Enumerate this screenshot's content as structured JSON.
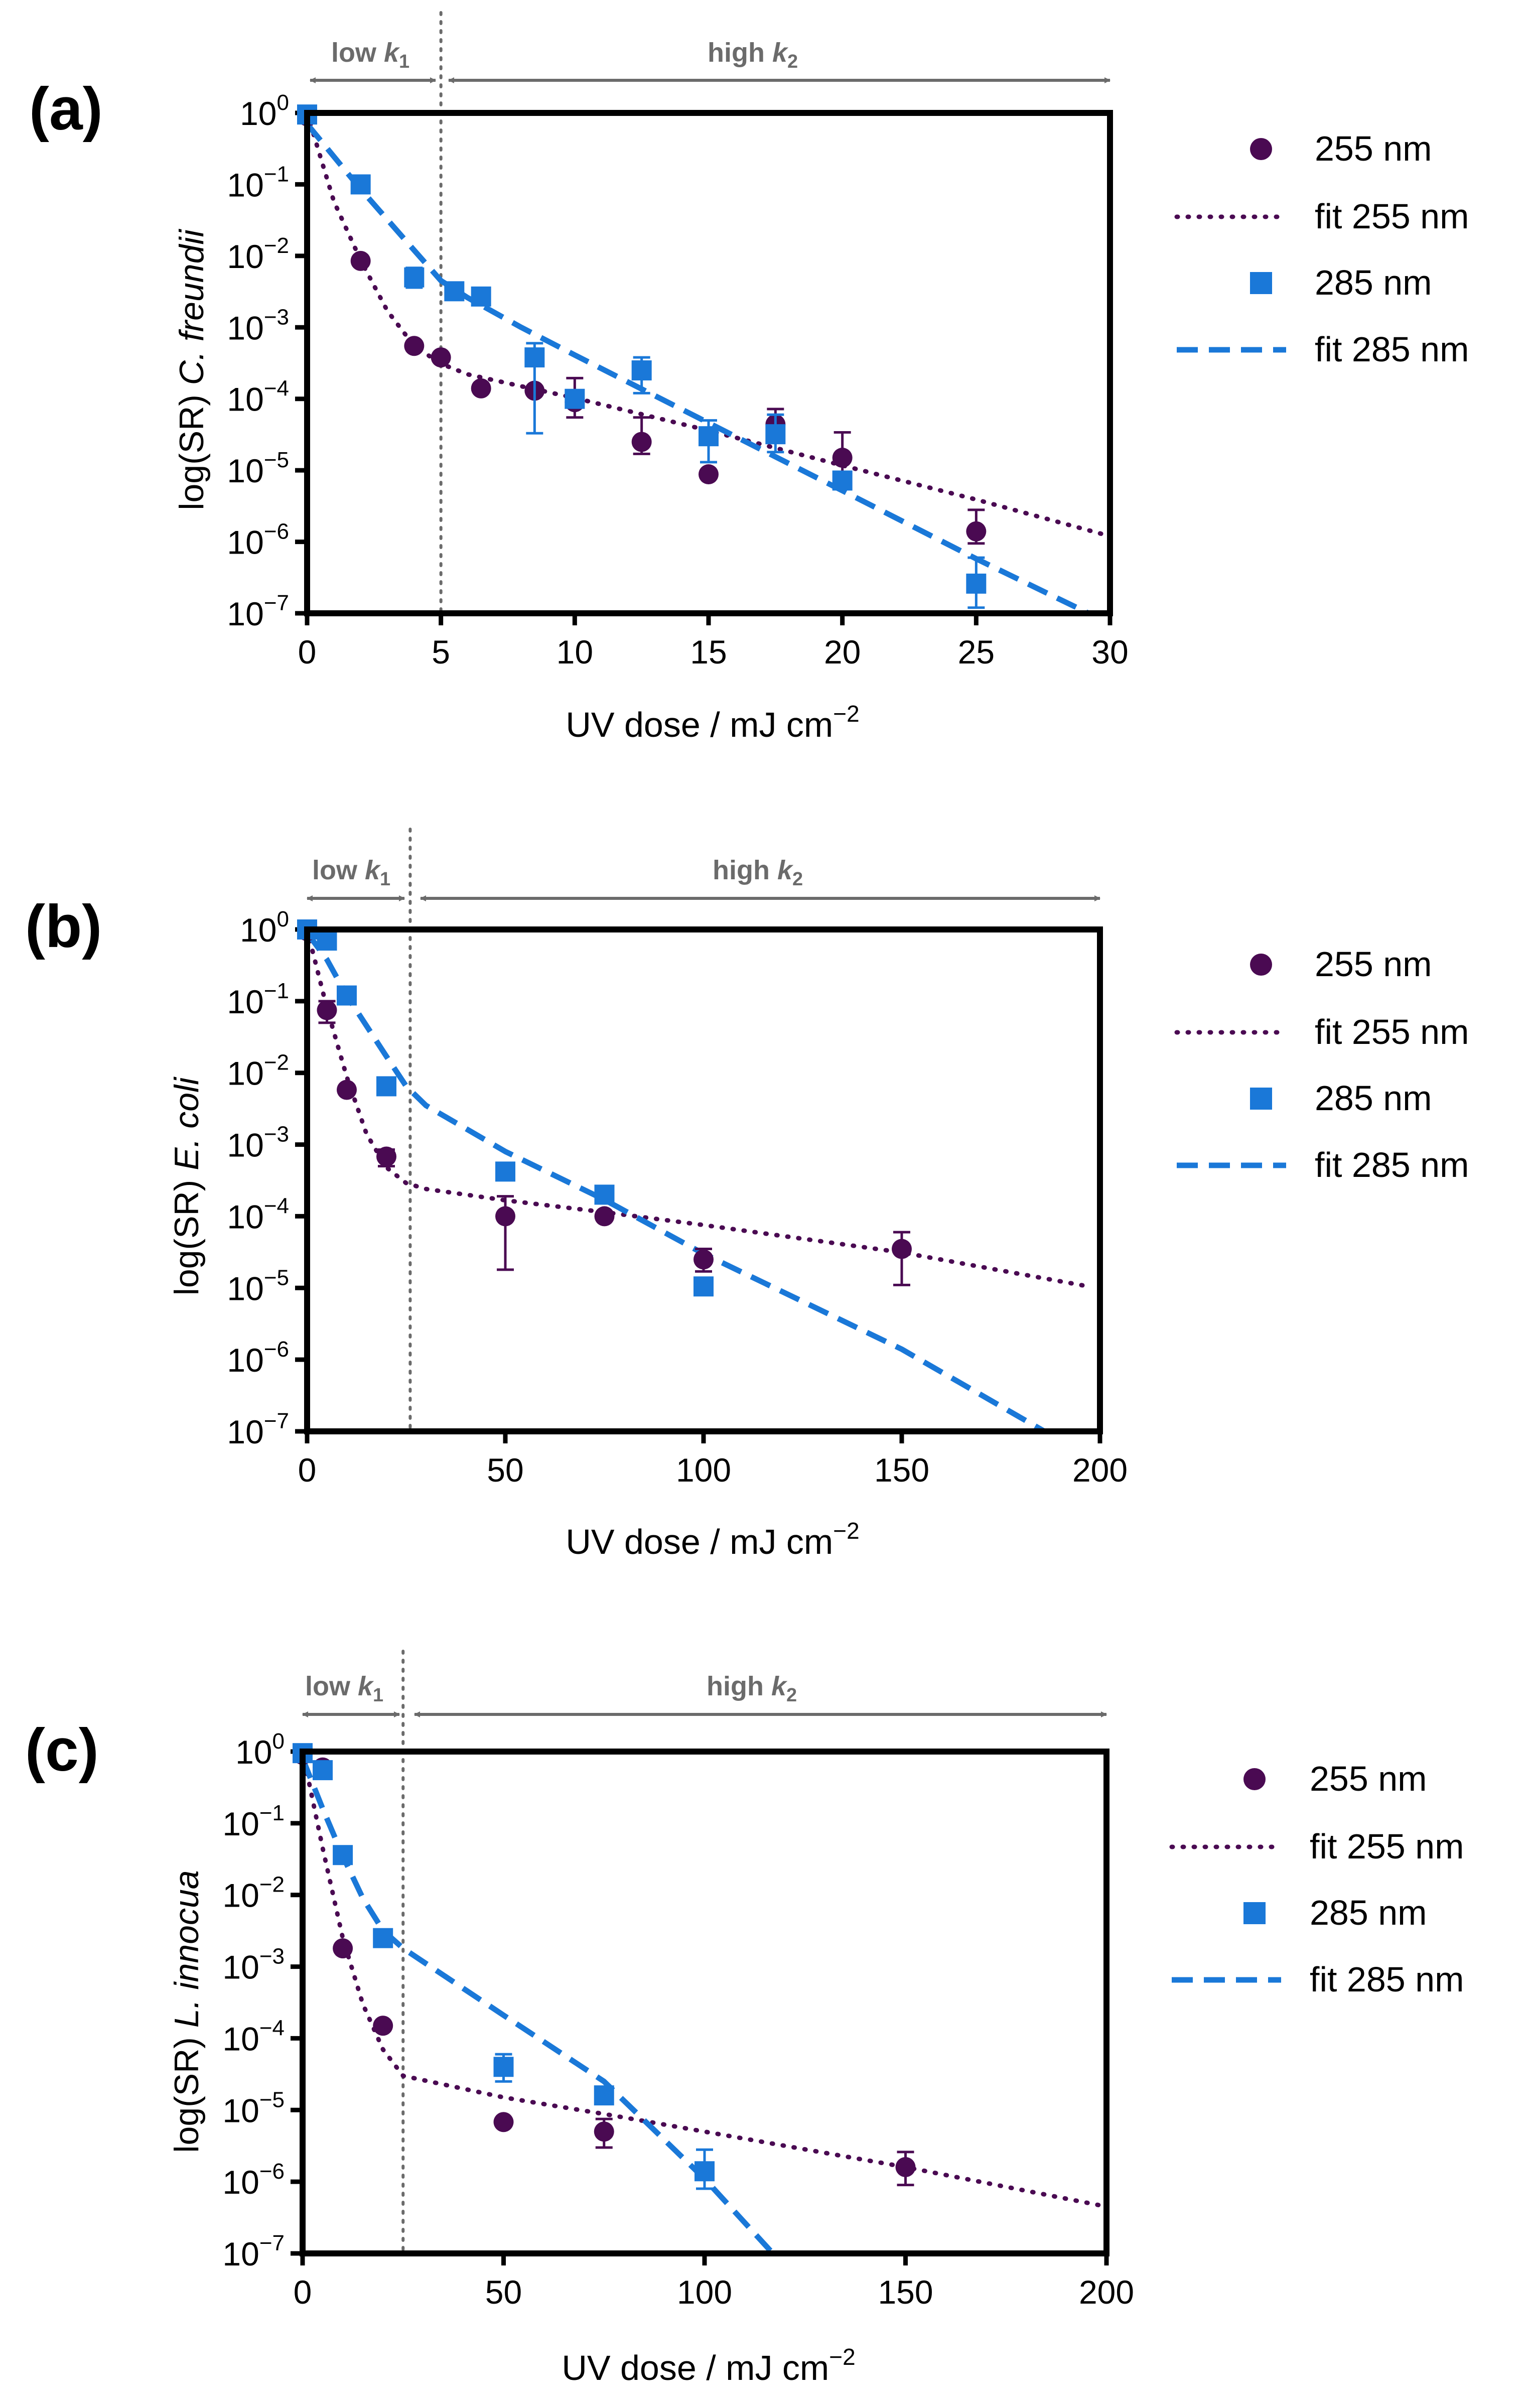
{
  "colors": {
    "series255": "#4a0a52",
    "series285": "#1a78d8",
    "axis": "#000000",
    "annotation": "#6b6b6b"
  },
  "chart_data": [
    {
      "panel_label": "(a)",
      "type": "scatter",
      "yscale": "log",
      "xlim": [
        0,
        30
      ],
      "ylim_exponents": [
        -7,
        0
      ],
      "xticks": [
        0,
        5,
        10,
        15,
        20,
        25,
        30
      ],
      "xtick_labels": [
        "0",
        "5",
        "10",
        "15",
        "20",
        "25",
        "30"
      ],
      "xlabel_main": "UV dose / mJ cm",
      "xlabel_sup": "−2",
      "ylabel_prefix": "log(SR) ",
      "ylabel_species": "C. freundii",
      "threshold_x": 5,
      "region_low": {
        "label": "low ",
        "k": "k",
        "sub": "1"
      },
      "region_high": {
        "label": "high ",
        "k": "k",
        "sub": "2"
      },
      "series": [
        {
          "name": "255 nm",
          "marker": "circle",
          "points": [
            [
              0,
              0.9
            ],
            [
              2,
              0.0085
            ],
            [
              4,
              0.00055
            ],
            [
              5,
              0.00038
            ],
            [
              6.5,
              0.00014
            ],
            [
              8.5,
              0.00013
            ],
            [
              10,
              9e-05
            ],
            [
              12.5,
              2.5e-05
            ],
            [
              15,
              8.8e-06
            ],
            [
              17.5,
              4.4e-05
            ],
            [
              20,
              1.5e-05
            ],
            [
              25,
              1.4e-06
            ]
          ],
          "errors": [
            [
              10,
              5.5e-05,
              0.000195
            ],
            [
              12.5,
              1.7e-05,
              5.5e-05
            ],
            [
              17.5,
              2.8e-05,
              7.2e-05
            ],
            [
              20,
              7.5e-06,
              3.4e-05
            ],
            [
              25,
              9.5e-07,
              2.8e-06
            ]
          ]
        },
        {
          "name": "fit 255 nm",
          "line": "dotted",
          "of": "255 nm",
          "points": [
            [
              0,
              1
            ],
            [
              1,
              0.058
            ],
            [
              2,
              0.0087
            ],
            [
              3,
              0.0017
            ],
            [
              4,
              0.00055
            ],
            [
              5,
              0.00031
            ],
            [
              6,
              0.00022
            ],
            [
              8,
              0.00015
            ],
            [
              10,
              0.000103
            ],
            [
              15,
              3.6e-05
            ],
            [
              20,
              1.17e-05
            ],
            [
              25,
              3.9e-06
            ],
            [
              30,
              1.2e-06
            ]
          ]
        },
        {
          "name": "285 nm",
          "marker": "square",
          "points": [
            [
              0,
              0.95
            ],
            [
              2,
              0.1
            ],
            [
              4,
              0.005
            ],
            [
              5.5,
              0.0032
            ],
            [
              6.5,
              0.0027
            ],
            [
              8.5,
              0.00038
            ],
            [
              10,
              0.0001
            ],
            [
              12.5,
              0.00025
            ],
            [
              15,
              3e-05
            ],
            [
              17.5,
              3.2e-05
            ],
            [
              20,
              7.2e-06
            ],
            [
              25,
              2.6e-07
            ]
          ],
          "errors": [
            [
              4,
              0.0036,
              0.0068
            ],
            [
              8.5,
              3.3e-05,
              0.0006
            ],
            [
              12.5,
              0.00012,
              0.00038
            ],
            [
              15,
              1.3e-05,
              5e-05
            ],
            [
              17.5,
              1.8e-05,
              6e-05
            ],
            [
              25,
              1.2e-07,
              6e-07
            ]
          ]
        },
        {
          "name": "fit 285 nm",
          "line": "dashed",
          "of": "285 nm",
          "points": [
            [
              0,
              0.7
            ],
            [
              2,
              0.086
            ],
            [
              4,
              0.012
            ],
            [
              5,
              0.0045
            ],
            [
              6,
              0.0026
            ],
            [
              8,
              0.001
            ],
            [
              10,
              0.00041
            ],
            [
              15,
              4.6e-05
            ],
            [
              20,
              5.2e-06
            ],
            [
              25,
              5.8e-07
            ],
            [
              29.2,
              1e-07
            ]
          ]
        }
      ]
    },
    {
      "panel_label": "(b)",
      "type": "scatter",
      "yscale": "log",
      "xlim": [
        0,
        200
      ],
      "ylim_exponents": [
        -7,
        0
      ],
      "xticks": [
        0,
        50,
        100,
        150,
        200
      ],
      "xtick_labels": [
        "0",
        "50",
        "100",
        "150",
        "200"
      ],
      "xlabel_main": "UV dose / mJ cm",
      "xlabel_sup": "−2",
      "ylabel_prefix": "log(SR) ",
      "ylabel_species": "E. coli",
      "threshold_x": 26,
      "region_low": {
        "label": "low ",
        "k": "k",
        "sub": "1"
      },
      "region_high": {
        "label": "high ",
        "k": "k",
        "sub": "2"
      },
      "series": [
        {
          "name": "255 nm",
          "marker": "circle",
          "points": [
            [
              0,
              0.95
            ],
            [
              5,
              0.075
            ],
            [
              10,
              0.0058
            ],
            [
              20,
              0.00068
            ],
            [
              50,
              0.0001
            ],
            [
              75,
              0.0001
            ],
            [
              100,
              2.5e-05
            ],
            [
              150,
              3.5e-05
            ]
          ],
          "errors": [
            [
              5,
              0.05,
              0.1
            ],
            [
              20,
              0.0005,
              0.00085
            ],
            [
              50,
              1.8e-05,
              0.00019
            ],
            [
              100,
              1.7e-05,
              3.5e-05
            ],
            [
              150,
              1.1e-05,
              6e-05
            ]
          ]
        },
        {
          "name": "fit 255 nm",
          "line": "dotted",
          "of": "255 nm",
          "points": [
            [
              0,
              1
            ],
            [
              5,
              0.08
            ],
            [
              10,
              0.0088
            ],
            [
              15,
              0.0014
            ],
            [
              20,
              0.00048
            ],
            [
              25,
              0.00029
            ],
            [
              30,
              0.00024
            ],
            [
              50,
              0.000167
            ],
            [
              75,
              0.000114
            ],
            [
              100,
              7.55e-05
            ],
            [
              150,
              3.13e-05
            ],
            [
              198,
              1.03e-05
            ]
          ]
        },
        {
          "name": "285 nm",
          "marker": "square",
          "points": [
            [
              0,
              1
            ],
            [
              5,
              0.7
            ],
            [
              10,
              0.12
            ],
            [
              20,
              0.0065
            ],
            [
              50,
              0.00042
            ],
            [
              75,
              0.0002
            ],
            [
              100,
              1.05e-05
            ]
          ],
          "errors": [
            [
              50,
              0.00033,
              0.00052
            ]
          ]
        },
        {
          "name": "fit 285 nm",
          "line": "dashed",
          "of": "285 nm",
          "points": [
            [
              0,
              0.9
            ],
            [
              5,
              0.38
            ],
            [
              10,
              0.12
            ],
            [
              20,
              0.017
            ],
            [
              25,
              0.0065
            ],
            [
              30,
              0.0035
            ],
            [
              50,
              0.0008
            ],
            [
              75,
              0.00017
            ],
            [
              100,
              3e-05
            ],
            [
              150,
              1.4e-06
            ],
            [
              186,
              1e-07
            ]
          ]
        }
      ]
    },
    {
      "panel_label": "(c)",
      "type": "scatter",
      "yscale": "log",
      "xlim": [
        0,
        200
      ],
      "ylim_exponents": [
        -7,
        0
      ],
      "xticks": [
        0,
        50,
        100,
        150,
        200
      ],
      "xtick_labels": [
        "0",
        "50",
        "100",
        "150",
        "200"
      ],
      "xlabel_main": "UV dose / mJ cm",
      "xlabel_sup": "−2",
      "ylabel_prefix": "log(SR) ",
      "ylabel_species": "L. innocua",
      "threshold_x": 25,
      "region_low": {
        "label": "low ",
        "k": "k",
        "sub": "1"
      },
      "region_high": {
        "label": "high ",
        "k": "k",
        "sub": "2"
      },
      "series": [
        {
          "name": "255 nm",
          "marker": "circle",
          "points": [
            [
              0,
              0.9
            ],
            [
              5,
              0.6
            ],
            [
              10,
              0.0018
            ],
            [
              20,
              0.00015
            ],
            [
              50,
              6.8e-06
            ],
            [
              75,
              5e-06
            ],
            [
              150,
              1.6e-06
            ]
          ],
          "errors": [
            [
              75,
              3e-06,
              7.5e-06
            ],
            [
              150,
              9e-07,
              2.6e-06
            ]
          ]
        },
        {
          "name": "fit 255 nm",
          "line": "dotted",
          "of": "255 nm",
          "points": [
            [
              0,
              1
            ],
            [
              5,
              0.045
            ],
            [
              10,
              0.0025
            ],
            [
              15,
              0.0003
            ],
            [
              20,
              7e-05
            ],
            [
              25,
              3e-05
            ],
            [
              50,
              1.5e-05
            ],
            [
              75,
              8.8e-06
            ],
            [
              100,
              5e-06
            ],
            [
              150,
              1.6e-06
            ],
            [
              200,
              4.5e-07
            ]
          ]
        },
        {
          "name": "285 nm",
          "marker": "square",
          "points": [
            [
              0,
              0.95
            ],
            [
              5,
              0.55
            ],
            [
              10,
              0.036
            ],
            [
              20,
              0.0025
            ],
            [
              50,
              4e-05
            ],
            [
              75,
              1.6e-05
            ],
            [
              100,
              1.4e-06
            ]
          ],
          "errors": [
            [
              50,
              2.5e-05,
              6e-05
            ],
            [
              100,
              8e-07,
              2.8e-06
            ]
          ]
        },
        {
          "name": "fit 285 nm",
          "line": "dashed",
          "of": "285 nm",
          "points": [
            [
              0,
              0.8
            ],
            [
              5,
              0.16
            ],
            [
              10,
              0.035
            ],
            [
              15,
              0.009
            ],
            [
              20,
              0.0032
            ],
            [
              25,
              0.0018
            ],
            [
              50,
              0.00021
            ],
            [
              75,
              2.5e-05
            ],
            [
              100,
              1.1e-06
            ],
            [
              117,
              1e-07
            ]
          ]
        }
      ]
    }
  ]
}
